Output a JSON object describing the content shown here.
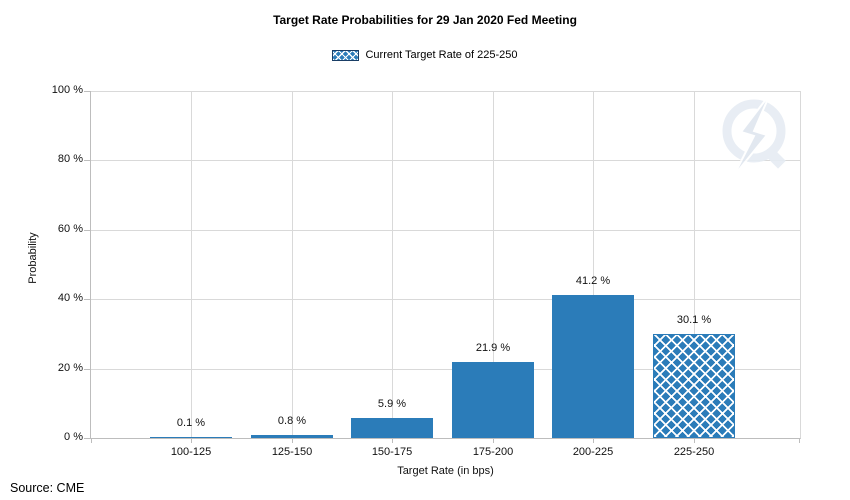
{
  "source": "Source: CME",
  "watermark": {
    "icon": "quandl-q-lightning-logo",
    "color": "#e3e9f1"
  },
  "chart_data": {
    "type": "bar",
    "title": "Target Rate Probabilities for 29 Jan 2020 Fed Meeting",
    "legend": {
      "label": "Current Target Rate of 225-250",
      "swatch_style": "blue-crosshatch",
      "position": "top-center"
    },
    "xlabel": "Target Rate (in bps)",
    "ylabel": "Probability",
    "categories": [
      "100-125",
      "125-150",
      "150-175",
      "175-200",
      "200-225",
      "225-250"
    ],
    "values": [
      0.1,
      0.8,
      5.9,
      21.9,
      41.2,
      30.1
    ],
    "value_labels": [
      "0.1 %",
      "0.8 %",
      "5.9 %",
      "21.9 %",
      "41.2 %",
      "30.1 %"
    ],
    "hatched": [
      false,
      false,
      false,
      false,
      false,
      true
    ],
    "ylim": [
      0,
      100
    ],
    "yticks": [
      0,
      20,
      40,
      60,
      80,
      100
    ],
    "ytick_labels": [
      "0 %",
      "20 %",
      "40 %",
      "60 %",
      "80 %",
      "100 %"
    ],
    "grid": true,
    "colors": {
      "bar": "#2b7cb9",
      "hatch_line": "#ffffff",
      "legend_border": "#1a3e66",
      "grid": "#d9d9d9",
      "axis": "#bdbdbd",
      "text": "#111111"
    }
  }
}
